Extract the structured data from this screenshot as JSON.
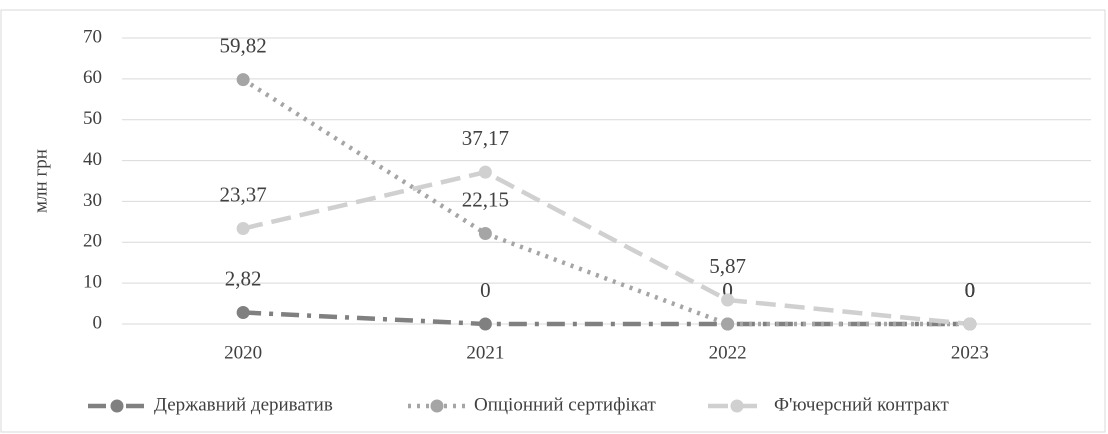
{
  "chart_data": {
    "type": "line",
    "categories": [
      "2020",
      "2021",
      "2022",
      "2023"
    ],
    "y_label": "млн грн",
    "series": [
      {
        "name": "Державний дериватив",
        "color": "#808080",
        "line_style": "dash-dot",
        "values": [
          2.82,
          0,
          0,
          0
        ],
        "value_labels": [
          "2,82",
          "0",
          "0",
          "0"
        ]
      },
      {
        "name": "Опціонний сертифікат",
        "color": "#a5a5a5",
        "line_style": "dotted",
        "values": [
          59.82,
          22.15,
          0,
          0
        ],
        "value_labels": [
          "59,82",
          "22,15",
          "0",
          "0"
        ]
      },
      {
        "name": "Ф'ючерсний контракт",
        "color": "#d0d0d0",
        "line_style": "dashed",
        "values": [
          23.37,
          37.17,
          5.87,
          0
        ],
        "value_labels": [
          "23,37",
          "37,17",
          "5,87",
          "0"
        ]
      }
    ],
    "ylim": [
      0,
      70
    ],
    "yticks": [
      0,
      10,
      20,
      30,
      40,
      50,
      60,
      70
    ],
    "grid": true,
    "legend": "bottom"
  }
}
